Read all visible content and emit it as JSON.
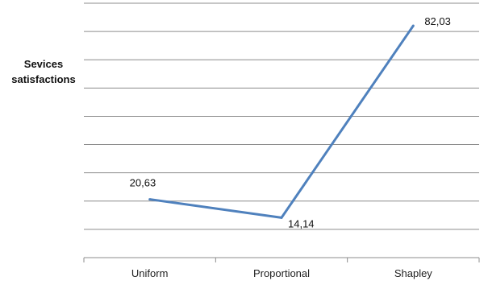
{
  "chart_data": {
    "type": "line",
    "title": "",
    "xlabel": "",
    "ylabel": "Sevices satisfactions",
    "ylabel_lines": [
      "Sevices",
      "satisfactions"
    ],
    "categories": [
      "Uniform",
      "Proportional",
      "Shapley"
    ],
    "series": [
      {
        "values": [
          20.63,
          14.14,
          82.03
        ],
        "data_labels": [
          "20,63",
          "14,14",
          "82,03"
        ],
        "color": "#4f81bd"
      }
    ],
    "ylim": [
      0,
      90
    ],
    "y_tick_step": 10,
    "grid": true,
    "y_tick_labels_shown": false,
    "legend": "none"
  }
}
